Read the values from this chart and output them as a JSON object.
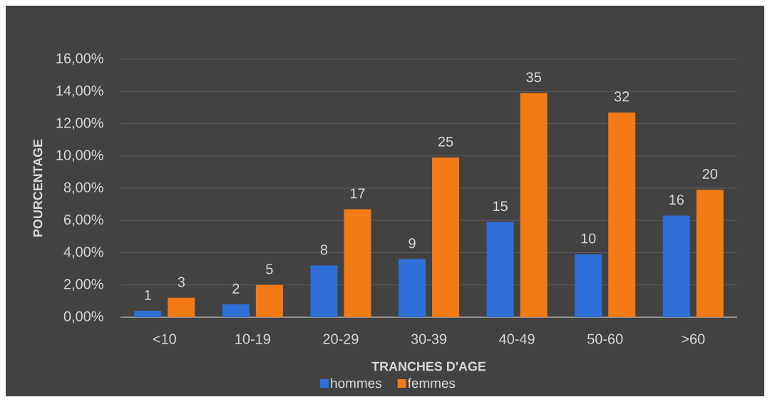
{
  "chart_data": {
    "type": "bar",
    "xlabel": "TRANCHES D'AGE",
    "ylabel": "POURCENTAGE",
    "categories": [
      "<10",
      "10-19",
      "20-29",
      "30-39",
      "40-49",
      "50-60",
      ">60"
    ],
    "series": [
      {
        "name": "hommes",
        "color": "#2f6fd8",
        "values": [
          0.4,
          0.8,
          3.2,
          3.6,
          5.9,
          3.9,
          6.3
        ]
      },
      {
        "name": "femmes",
        "color": "#f47a15",
        "values": [
          1.2,
          2.0,
          6.7,
          9.9,
          13.9,
          12.7,
          7.9
        ]
      }
    ],
    "annotations": [
      {
        "text": "1",
        "x": "<10",
        "y": 0.4
      },
      {
        "text": "3",
        "x": "<10",
        "y": 1.2
      },
      {
        "text": "2",
        "x": "10-19",
        "y": 0.8
      },
      {
        "text": "5",
        "x": "10-19",
        "y": 2.0
      },
      {
        "text": "8",
        "x": "20-29",
        "y": 3.2
      },
      {
        "text": "17",
        "x": "20-29",
        "y": 6.7
      },
      {
        "text": "9",
        "x": "30-39",
        "y": 3.6
      },
      {
        "text": "25",
        "x": "30-39",
        "y": 9.9
      },
      {
        "text": "15",
        "x": "40-49",
        "y": 5.9
      },
      {
        "text": "35",
        "x": "40-49",
        "y": 13.9
      },
      {
        "text": "10",
        "x": "50-60",
        "y": 3.9
      },
      {
        "text": "32",
        "x": "50-60",
        "y": 12.7
      },
      {
        "text": "16",
        "x": ">60",
        "y": 6.3
      },
      {
        "text": "20",
        "x": ">60",
        "y": 7.9
      }
    ],
    "ylim": [
      0,
      16
    ],
    "yticks": [
      {
        "value": 0,
        "label": "0,00%"
      },
      {
        "value": 2,
        "label": "2,00%"
      },
      {
        "value": 4,
        "label": "4,00%"
      },
      {
        "value": 6,
        "label": "6,00%"
      },
      {
        "value": 8,
        "label": "8,00%"
      },
      {
        "value": 10,
        "label": "10,00%"
      },
      {
        "value": 12,
        "label": "12,00%"
      },
      {
        "value": 14,
        "label": "14,00%"
      },
      {
        "value": 16,
        "label": "16,00%"
      }
    ],
    "grid": "y",
    "legend": "bottom"
  }
}
